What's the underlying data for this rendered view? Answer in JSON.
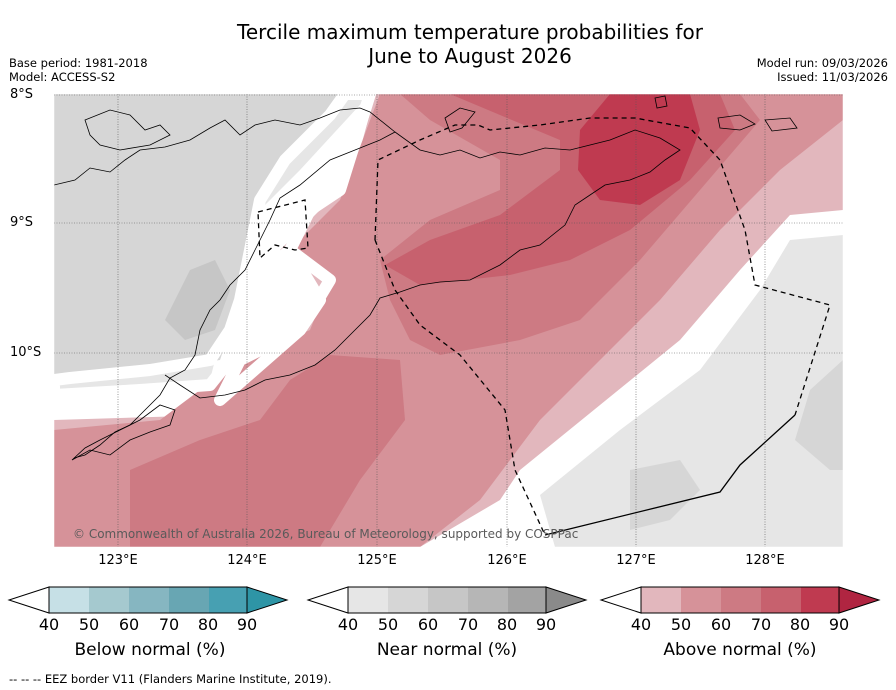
{
  "title_line1": "Tercile maximum temperature probabilities for",
  "title_line2": "June to August 2026",
  "base_period": "Base period: 1981-2018",
  "model": "Model: ACCESS-S2",
  "model_run": "Model run: 09/03/2026",
  "issued": "Issued: 11/03/2026",
  "lat_labels": [
    "8°S",
    "9°S",
    "10°S"
  ],
  "lon_labels": [
    "123°E",
    "124°E",
    "125°E",
    "126°E",
    "127°E",
    "128°E"
  ],
  "copyright": "© Commonwealth of Australia 2026, Bureau of Meteorology, supported by COSPPac",
  "colorbars": [
    {
      "label": "Below normal (%)",
      "ticks": [
        "40",
        "50",
        "60",
        "70",
        "80",
        "90"
      ],
      "colors": [
        "#c6e0e6",
        "#a5c9cf",
        "#86b6c1",
        "#68a6b3",
        "#47a0b2",
        "#2e95a6"
      ]
    },
    {
      "label": "Near normal (%)",
      "ticks": [
        "40",
        "50",
        "60",
        "70",
        "80",
        "90"
      ],
      "colors": [
        "#e6e6e6",
        "#d6d6d6",
        "#c6c6c6",
        "#b6b6b6",
        "#a3a3a3",
        "#8a8a8a"
      ]
    },
    {
      "label": "Above normal (%)",
      "ticks": [
        "40",
        "50",
        "60",
        "70",
        "80",
        "90"
      ],
      "colors": [
        "#e2b7bd",
        "#d69299",
        "#cd7a83",
        "#c7616e",
        "#bf3a50",
        "#b02541"
      ]
    }
  ],
  "legend_footer": "--  --  -- EEZ border V11 (Flanders Marine Institute, 2019).",
  "colors": {
    "near_40": "#e6e6e6",
    "near_50": "#d6d6d6",
    "near_60": "#c6c6c6",
    "above_40": "#e2b7bd",
    "above_50": "#d69299",
    "above_60": "#cd7a83",
    "above_70": "#c7616e",
    "above_80": "#bf3a50"
  }
}
